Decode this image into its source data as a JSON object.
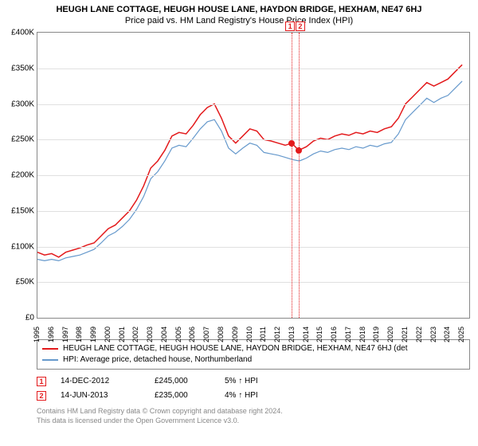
{
  "title": "HEUGH LANE COTTAGE, HEUGH HOUSE LANE, HAYDON BRIDGE, HEXHAM, NE47 6HJ",
  "subtitle": "Price paid vs. HM Land Registry's House Price Index (HPI)",
  "chart": {
    "type": "line",
    "background_color": "#ffffff",
    "grid_color": "#e0e0e0",
    "border_color": "#888888",
    "ylim": [
      0,
      400000
    ],
    "ytick_step": 50000,
    "ytick_labels": [
      "£0",
      "£50K",
      "£100K",
      "£150K",
      "£200K",
      "£250K",
      "£300K",
      "£350K",
      "£400K"
    ],
    "xlim": [
      1995,
      2025.5
    ],
    "xticks": [
      1995,
      1996,
      1997,
      1998,
      1999,
      2000,
      2001,
      2002,
      2003,
      2004,
      2005,
      2006,
      2007,
      2008,
      2009,
      2010,
      2011,
      2012,
      2013,
      2014,
      2015,
      2016,
      2017,
      2018,
      2019,
      2020,
      2021,
      2022,
      2023,
      2024,
      2025
    ],
    "series": [
      {
        "name": "HEUGH LANE COTTAGE, HEUGH HOUSE LANE, HAYDON BRIDGE, HEXHAM, NE47 6HJ (det",
        "color": "#e31a1c",
        "line_width": 1.5,
        "values": [
          [
            1995,
            92000
          ],
          [
            1995.5,
            88000
          ],
          [
            1996,
            90000
          ],
          [
            1996.5,
            85000
          ],
          [
            1997,
            92000
          ],
          [
            1997.5,
            95000
          ],
          [
            1998,
            98000
          ],
          [
            1998.5,
            102000
          ],
          [
            1999,
            105000
          ],
          [
            1999.5,
            115000
          ],
          [
            2000,
            125000
          ],
          [
            2000.5,
            130000
          ],
          [
            2001,
            140000
          ],
          [
            2001.5,
            150000
          ],
          [
            2002,
            165000
          ],
          [
            2002.5,
            185000
          ],
          [
            2003,
            210000
          ],
          [
            2003.5,
            220000
          ],
          [
            2004,
            235000
          ],
          [
            2004.5,
            255000
          ],
          [
            2005,
            260000
          ],
          [
            2005.5,
            258000
          ],
          [
            2006,
            270000
          ],
          [
            2006.5,
            285000
          ],
          [
            2007,
            295000
          ],
          [
            2007.5,
            300000
          ],
          [
            2008,
            280000
          ],
          [
            2008.5,
            255000
          ],
          [
            2009,
            245000
          ],
          [
            2009.5,
            255000
          ],
          [
            2010,
            265000
          ],
          [
            2010.5,
            262000
          ],
          [
            2011,
            250000
          ],
          [
            2011.5,
            248000
          ],
          [
            2012,
            245000
          ],
          [
            2012.5,
            242000
          ],
          [
            2012.96,
            245000
          ],
          [
            2013.45,
            235000
          ],
          [
            2014,
            240000
          ],
          [
            2014.5,
            248000
          ],
          [
            2015,
            252000
          ],
          [
            2015.5,
            250000
          ],
          [
            2016,
            255000
          ],
          [
            2016.5,
            258000
          ],
          [
            2017,
            256000
          ],
          [
            2017.5,
            260000
          ],
          [
            2018,
            258000
          ],
          [
            2018.5,
            262000
          ],
          [
            2019,
            260000
          ],
          [
            2019.5,
            265000
          ],
          [
            2020,
            268000
          ],
          [
            2020.5,
            280000
          ],
          [
            2021,
            300000
          ],
          [
            2021.5,
            310000
          ],
          [
            2022,
            320000
          ],
          [
            2022.5,
            330000
          ],
          [
            2023,
            325000
          ],
          [
            2023.5,
            330000
          ],
          [
            2024,
            335000
          ],
          [
            2024.5,
            345000
          ],
          [
            2025,
            355000
          ]
        ]
      },
      {
        "name": "HPI: Average price, detached house, Northumberland",
        "color": "#6699cc",
        "line_width": 1.2,
        "values": [
          [
            1995,
            82000
          ],
          [
            1995.5,
            80000
          ],
          [
            1996,
            82000
          ],
          [
            1996.5,
            80000
          ],
          [
            1997,
            84000
          ],
          [
            1997.5,
            86000
          ],
          [
            1998,
            88000
          ],
          [
            1998.5,
            92000
          ],
          [
            1999,
            96000
          ],
          [
            1999.5,
            105000
          ],
          [
            2000,
            115000
          ],
          [
            2000.5,
            120000
          ],
          [
            2001,
            128000
          ],
          [
            2001.5,
            138000
          ],
          [
            2002,
            152000
          ],
          [
            2002.5,
            170000
          ],
          [
            2003,
            195000
          ],
          [
            2003.5,
            205000
          ],
          [
            2004,
            220000
          ],
          [
            2004.5,
            238000
          ],
          [
            2005,
            242000
          ],
          [
            2005.5,
            240000
          ],
          [
            2006,
            252000
          ],
          [
            2006.5,
            265000
          ],
          [
            2007,
            275000
          ],
          [
            2007.5,
            278000
          ],
          [
            2008,
            262000
          ],
          [
            2008.5,
            238000
          ],
          [
            2009,
            230000
          ],
          [
            2009.5,
            238000
          ],
          [
            2010,
            245000
          ],
          [
            2010.5,
            242000
          ],
          [
            2011,
            232000
          ],
          [
            2011.5,
            230000
          ],
          [
            2012,
            228000
          ],
          [
            2012.5,
            225000
          ],
          [
            2013,
            222000
          ],
          [
            2013.5,
            220000
          ],
          [
            2014,
            224000
          ],
          [
            2014.5,
            230000
          ],
          [
            2015,
            234000
          ],
          [
            2015.5,
            232000
          ],
          [
            2016,
            236000
          ],
          [
            2016.5,
            238000
          ],
          [
            2017,
            236000
          ],
          [
            2017.5,
            240000
          ],
          [
            2018,
            238000
          ],
          [
            2018.5,
            242000
          ],
          [
            2019,
            240000
          ],
          [
            2019.5,
            244000
          ],
          [
            2020,
            246000
          ],
          [
            2020.5,
            258000
          ],
          [
            2021,
            278000
          ],
          [
            2021.5,
            288000
          ],
          [
            2022,
            298000
          ],
          [
            2022.5,
            308000
          ],
          [
            2023,
            302000
          ],
          [
            2023.5,
            308000
          ],
          [
            2024,
            312000
          ],
          [
            2024.5,
            322000
          ],
          [
            2025,
            332000
          ]
        ]
      }
    ],
    "events": [
      {
        "n": "1",
        "date_x": 2012.96,
        "price_y": 245000,
        "date_label": "14-DEC-2012",
        "price_label": "£245,000",
        "pct_label": "5% ↑ HPI",
        "color": "#e31a1c"
      },
      {
        "n": "2",
        "date_x": 2013.45,
        "price_y": 235000,
        "date_label": "14-JUN-2013",
        "price_label": "£235,000",
        "pct_label": "4% ↑ HPI",
        "color": "#e31a1c"
      }
    ]
  },
  "legend": {
    "border_color": "#888888"
  },
  "footer": {
    "line1": "Contains HM Land Registry data © Crown copyright and database right 2024.",
    "line2": "This data is licensed under the Open Government Licence v3.0.",
    "color": "#888888"
  }
}
